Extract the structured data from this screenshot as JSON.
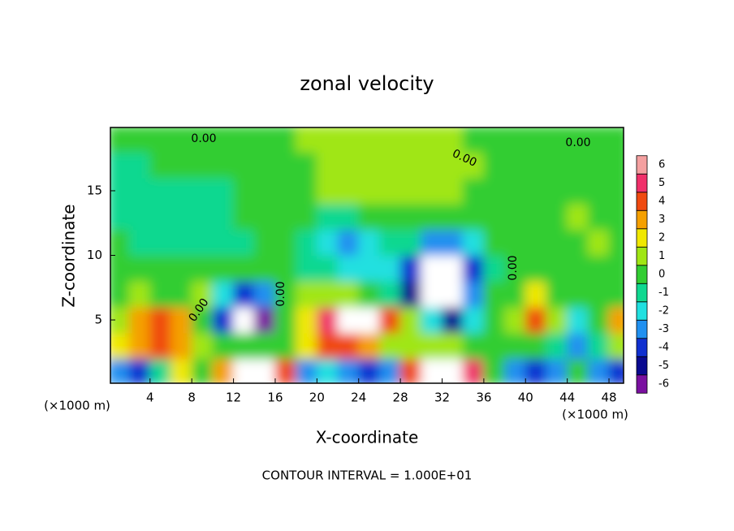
{
  "chart_data": {
    "type": "heatmap",
    "title": "zonal velocity",
    "x_label": "X-coordinate",
    "y_label": "Z-coordinate",
    "x_unit": "(×1000 m)",
    "footnote": "CONTOUR INTERVAL = 1.000E+01",
    "contour_labels": [
      "0.00",
      "0.00",
      "0.00",
      "0.00",
      "0.00",
      "0.00"
    ],
    "xlim": [
      0.2,
      49.4
    ],
    "ylim": [
      0.1,
      19.9
    ],
    "xticks": [
      4,
      8,
      12,
      16,
      20,
      24,
      28,
      32,
      36,
      40,
      44,
      48
    ],
    "yticks": [
      5,
      10,
      15
    ],
    "x": [
      1,
      3,
      5,
      7,
      9,
      11,
      13,
      15,
      17,
      19,
      21,
      23,
      25,
      27,
      29,
      31,
      33,
      35,
      37,
      39,
      41,
      43,
      45,
      47,
      49
    ],
    "y": [
      1,
      3,
      5,
      7,
      9,
      11,
      13,
      15,
      17,
      19
    ],
    "z": [
      [
        -3,
        -4,
        -1,
        2,
        0,
        3,
        7,
        7,
        4,
        -3,
        -2,
        -3,
        -4,
        -3,
        4,
        7,
        7,
        5,
        0,
        -3,
        -4,
        -3,
        0,
        -3,
        -4
      ],
      [
        2,
        3,
        4,
        3,
        0.5,
        0,
        -0.5,
        -0.5,
        0,
        2,
        4,
        4,
        3,
        1,
        0.5,
        1,
        0.5,
        0,
        0,
        0,
        0,
        -1,
        -3,
        -1,
        0.5
      ],
      [
        0.5,
        3,
        4,
        3,
        0,
        -4,
        -7,
        -6,
        -0.5,
        2,
        5,
        7,
        7,
        4,
        1,
        -2,
        -5,
        -2,
        -0.5,
        0.5,
        4,
        1,
        -2,
        0,
        3
      ],
      [
        0,
        1,
        0.3,
        0,
        0.5,
        -2,
        -4,
        -3,
        -0.5,
        0.5,
        1,
        0.5,
        -0.5,
        -1.5,
        -5,
        -7,
        -7,
        -3,
        0,
        0.3,
        2,
        0,
        0,
        -0.5,
        0.3
      ],
      [
        0,
        -0.3,
        -0.5,
        -0.5,
        -0.3,
        -0.5,
        -0.5,
        -0.5,
        -0.3,
        -0.8,
        -1.5,
        -2.5,
        -2.5,
        -2,
        -4,
        -7,
        -7,
        -4,
        -1,
        -0.3,
        0,
        -0.3,
        0,
        0.3,
        0
      ],
      [
        -0.5,
        -1,
        -1,
        -1,
        -1,
        -0.8,
        -0.8,
        -0.5,
        -0.5,
        -1.5,
        -2.5,
        -3,
        -2,
        -0.8,
        -1.5,
        -3,
        -3,
        -2,
        0,
        0.2,
        0.3,
        0,
        0,
        0.5,
        0.3
      ],
      [
        -1,
        -1.5,
        -1.5,
        -1.3,
        -1,
        -0.8,
        -0.5,
        -0.3,
        -0.3,
        -0.5,
        -1,
        -0.8,
        -0.3,
        0,
        0.3,
        0.3,
        0.3,
        0.2,
        0,
        0.3,
        0,
        0.3,
        0.5,
        0,
        0.3
      ],
      [
        -1,
        -1.5,
        -1.5,
        -1.2,
        -1,
        -0.8,
        -0.5,
        -0.3,
        0,
        0.3,
        0.5,
        0.5,
        0.5,
        0.8,
        0.8,
        0.8,
        0.5,
        0.3,
        0.3,
        0.3,
        0,
        0,
        -0.3,
        0.3,
        0.3
      ],
      [
        -0.8,
        -0.8,
        -0.5,
        -0.3,
        -0.3,
        -0.2,
        0,
        0,
        0.2,
        0.3,
        0.5,
        0.5,
        0.8,
        0.8,
        1,
        1.2,
        1,
        0.5,
        0,
        -0.2,
        -0.3,
        -0.2,
        -0.3,
        -0.2,
        0
      ],
      [
        0,
        0.3,
        0.3,
        0.2,
        0,
        -0.2,
        -0.3,
        0,
        0.3,
        0.5,
        0.5,
        0.5,
        0.5,
        0.5,
        0.8,
        0.8,
        0.5,
        0.3,
        0,
        -0.3,
        -0.3,
        -0.2,
        0,
        0.2,
        0.3
      ]
    ],
    "colorbar": {
      "levels": [
        -6,
        -5,
        -4,
        -3,
        -2,
        -1,
        0,
        1,
        2,
        3,
        4,
        5,
        6
      ],
      "colors": [
        "#7a10a0",
        "#0a0a90",
        "#1030d0",
        "#2090f0",
        "#20e0e0",
        "#10d890",
        "#32cd32",
        "#a0e614",
        "#f0e800",
        "#f5a000",
        "#f04a10",
        "#f0306a",
        "#f4a0a0"
      ],
      "out_of_range_color": "#ffffff"
    }
  }
}
